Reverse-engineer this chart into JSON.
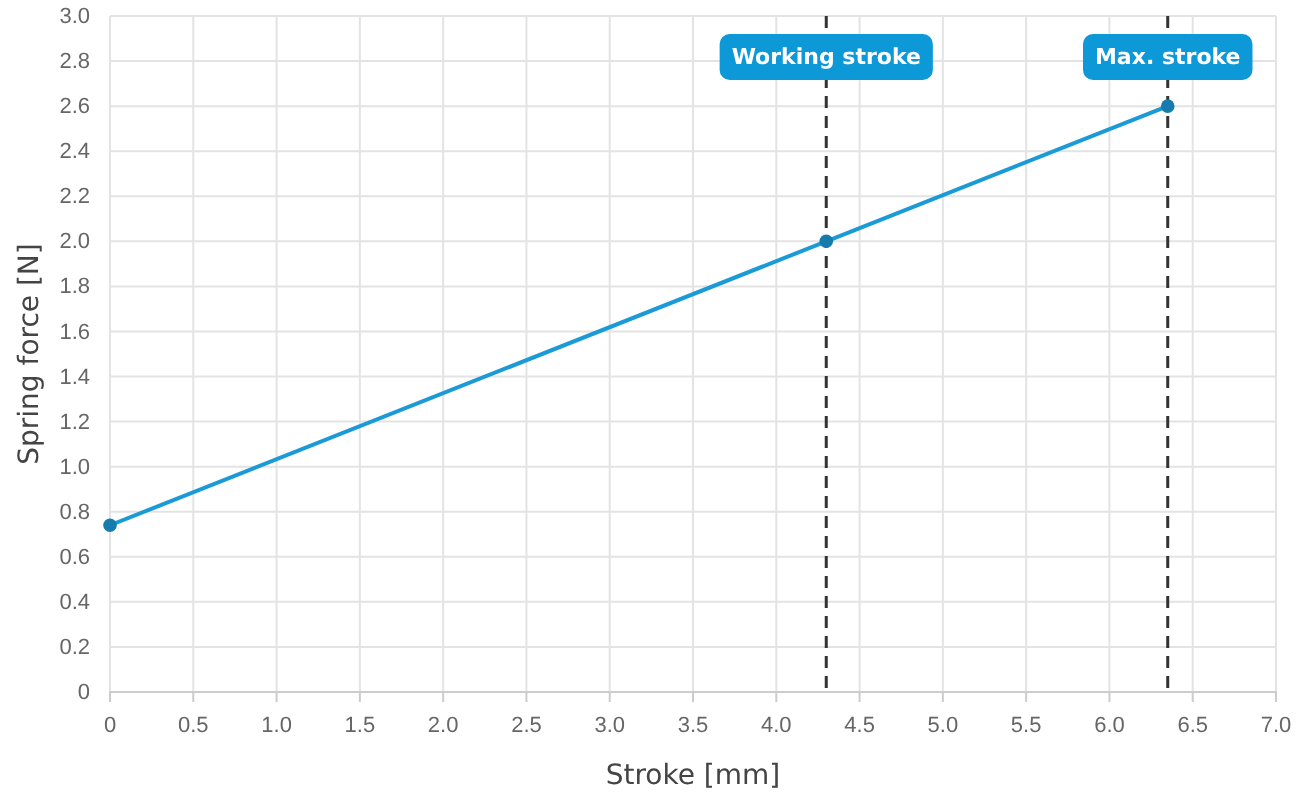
{
  "chart_data": {
    "type": "line",
    "xlabel": "Stroke [mm]",
    "ylabel": "Spring force [N]",
    "x": [
      0,
      4.3,
      6.35
    ],
    "series": [
      {
        "color": "#1a9ad6",
        "values": [
          0.74,
          2.0,
          2.6
        ]
      }
    ],
    "xlim": [
      0,
      7
    ],
    "xticks": [
      0,
      {
        "value": 0.5,
        "label": "0.5"
      },
      {
        "value": 1,
        "label": "1.0"
      },
      {
        "value": 1.5,
        "label": "1.5"
      },
      {
        "value": 2,
        "label": "2.0"
      },
      {
        "value": 2.5,
        "label": "2.5"
      },
      {
        "value": 3,
        "label": "3.0"
      },
      {
        "value": 3.5,
        "label": "3.5"
      },
      {
        "value": 4,
        "label": "4.0"
      },
      {
        "value": 4.5,
        "label": "4.5"
      },
      {
        "value": 5,
        "label": "5.0"
      },
      {
        "value": 5.5,
        "label": "5.5"
      },
      {
        "value": 6,
        "label": "6.0"
      },
      {
        "value": 6.5,
        "label": "6.5"
      },
      {
        "value": 7,
        "label": "7.0"
      }
    ],
    "ylim": [
      0,
      3
    ],
    "yticks": [
      0,
      {
        "value": 0.2,
        "label": "0.2"
      },
      {
        "value": 0.4,
        "label": "0.4"
      },
      {
        "value": 0.6,
        "label": "0.6"
      },
      {
        "value": 0.8,
        "label": "0.8"
      },
      {
        "value": 1,
        "label": "1.0"
      },
      {
        "value": 1.2,
        "label": "1.2"
      },
      {
        "value": 1.4,
        "label": "1.4"
      },
      {
        "value": 1.6,
        "label": "1.6"
      },
      {
        "value": 1.8,
        "label": "1.8"
      },
      {
        "value": 2,
        "label": "2.0"
      },
      {
        "value": 2.2,
        "label": "2.2"
      },
      {
        "value": 2.4,
        "label": "2.4"
      },
      {
        "value": 2.6,
        "label": "2.6"
      },
      {
        "value": 2.8,
        "label": "2.8"
      },
      {
        "value": 3,
        "label": "3.0"
      }
    ],
    "ref_lines": [
      {
        "axis": "x",
        "value": 4.3,
        "label": "Working stroke",
        "color": "#333333",
        "line_style": "dashed"
      },
      {
        "axis": "x",
        "value": 6.35,
        "label": "Max. stroke",
        "color": "#333333",
        "line_style": "dashed"
      }
    ],
    "grid": true,
    "marker": "circle",
    "line_style": "solid"
  }
}
